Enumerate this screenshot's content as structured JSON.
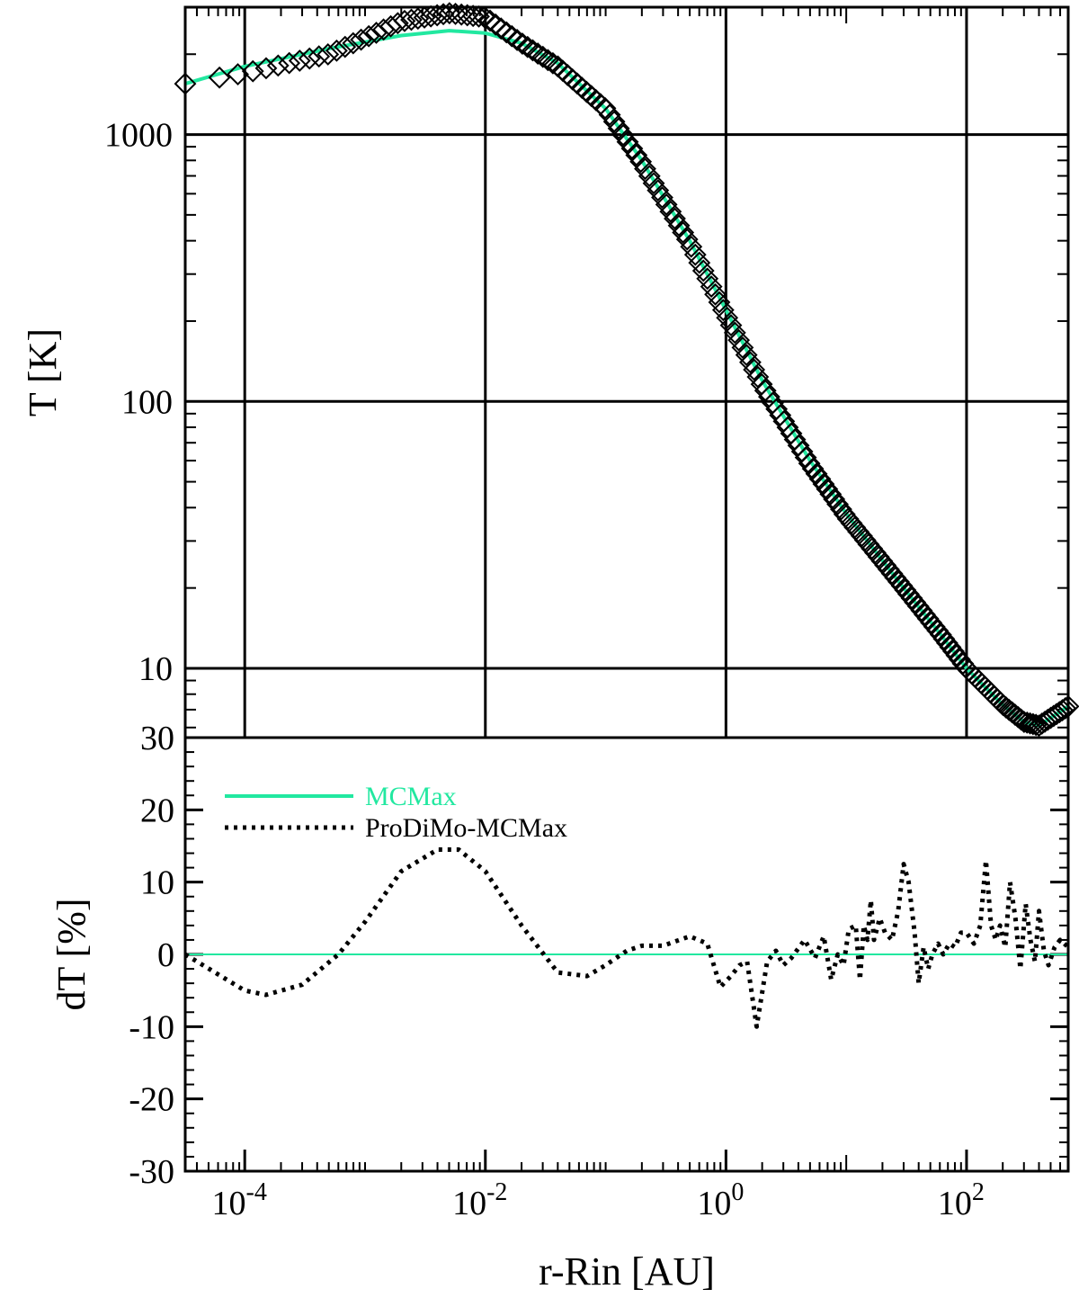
{
  "chart_data": [
    {
      "type": "line",
      "ylabel": "T [K]",
      "xlabel": "",
      "x_scale": "log",
      "y_scale": "log",
      "xlim": [
        3.2e-05,
        700
      ],
      "ylim": [
        5.5,
        3000
      ],
      "grid": true,
      "x_ticks": [
        0.0001,
        0.01,
        1,
        100
      ],
      "x_tick_labels": [
        "",
        "",
        "",
        ""
      ],
      "y_ticks": [
        10,
        100,
        1000
      ],
      "y_tick_labels": [
        "10",
        "100",
        "1000"
      ],
      "series": [
        {
          "name": "MCMax",
          "style": "solid",
          "color": "#22e8a0",
          "x": [
            3.2e-05,
            0.0001,
            0.0005,
            0.002,
            0.005,
            0.01,
            0.02,
            0.04,
            0.1,
            0.2,
            0.5,
            1,
            2,
            5,
            10,
            30,
            60,
            100,
            200,
            300,
            400,
            700
          ],
          "y": [
            1550,
            1800,
            2100,
            2350,
            2450,
            2400,
            2200,
            1850,
            1250,
            800,
            400,
            220,
            120,
            60,
            38,
            20,
            13.5,
            10,
            7.3,
            6.3,
            6.1,
            7.2
          ]
        },
        {
          "name": "ProDiMo",
          "style": "diamond",
          "color": "#000000",
          "x": [
            3.2e-05,
            0.0001,
            0.0005,
            0.002,
            0.005,
            0.01,
            0.02,
            0.04,
            0.1,
            0.2,
            0.5,
            1,
            2,
            5,
            10,
            30,
            60,
            100,
            200,
            300,
            400,
            700
          ],
          "y": [
            1550,
            1700,
            2000,
            2650,
            2850,
            2750,
            2200,
            1800,
            1250,
            780,
            390,
            210,
            115,
            58,
            37,
            20,
            13.5,
            10,
            7.3,
            6.3,
            6.1,
            7.2
          ]
        }
      ]
    },
    {
      "type": "line",
      "ylabel": "dT [%]",
      "xlabel": "r-Rin [AU]",
      "x_scale": "log",
      "y_scale": "linear",
      "xlim": [
        3.2e-05,
        700
      ],
      "ylim": [
        -30,
        30
      ],
      "x_ticks": [
        0.0001,
        0.01,
        1,
        100
      ],
      "x_tick_labels": [
        "10-4",
        "10-2",
        "100",
        "102"
      ],
      "y_ticks": [
        -30,
        -20,
        -10,
        0,
        10,
        20,
        30
      ],
      "y_tick_labels": [
        "-30",
        "-20",
        "-10",
        "0",
        "10",
        "20",
        "30"
      ],
      "legend": "top-left",
      "series": [
        {
          "name": "MCMax",
          "style": "solid",
          "color": "#22e8a0",
          "x": [
            3.2e-05,
            700
          ],
          "y": [
            0,
            0
          ]
        },
        {
          "name": "ProDiMo-MCMax",
          "style": "dotted",
          "color": "#000000",
          "x": [
            3.2e-05,
            0.0001,
            0.00015,
            0.0003,
            0.0006,
            0.001,
            0.002,
            0.004,
            0.006,
            0.01,
            0.02,
            0.04,
            0.07,
            0.1,
            0.15,
            0.2,
            0.3,
            0.5,
            0.7,
            0.9,
            1.1,
            1.3,
            1.5,
            1.8,
            2.2,
            2.6,
            3.0,
            3.5,
            4.5,
            5.5,
            6.5,
            7.5,
            8.5,
            9.5,
            10.5,
            12,
            13,
            14,
            15,
            16,
            17,
            19,
            21,
            24,
            27,
            30,
            33,
            37,
            40,
            44,
            48,
            52,
            58,
            64,
            72,
            80,
            90,
            100,
            115,
            130,
            145,
            160,
            175,
            190,
            210,
            230,
            255,
            280,
            310,
            340,
            370,
            400,
            440,
            480,
            540,
            600,
            700
          ],
          "y": [
            0,
            -5,
            -5.6,
            -4.2,
            0,
            4.5,
            11.5,
            14.5,
            14.5,
            11.5,
            4,
            -2.5,
            -3,
            -1.5,
            0.5,
            1.2,
            1.2,
            2.5,
            1.5,
            -4.5,
            -3,
            -1.5,
            -1,
            -10,
            -1,
            0.5,
            -1.5,
            -0.5,
            2,
            -0.5,
            2.5,
            -3.5,
            0,
            -1.5,
            3.5,
            4,
            -3.5,
            4,
            2,
            7.5,
            2,
            5,
            3,
            2,
            6,
            12.5,
            10,
            3,
            -4,
            1,
            -2,
            0,
            1.5,
            0,
            1.5,
            1,
            3,
            3,
            1.5,
            4,
            13,
            4,
            2,
            4,
            1,
            10,
            5,
            -2,
            7,
            2,
            -1,
            6,
            0.5,
            -1.5,
            1,
            2,
            1
          ]
        }
      ]
    }
  ]
}
